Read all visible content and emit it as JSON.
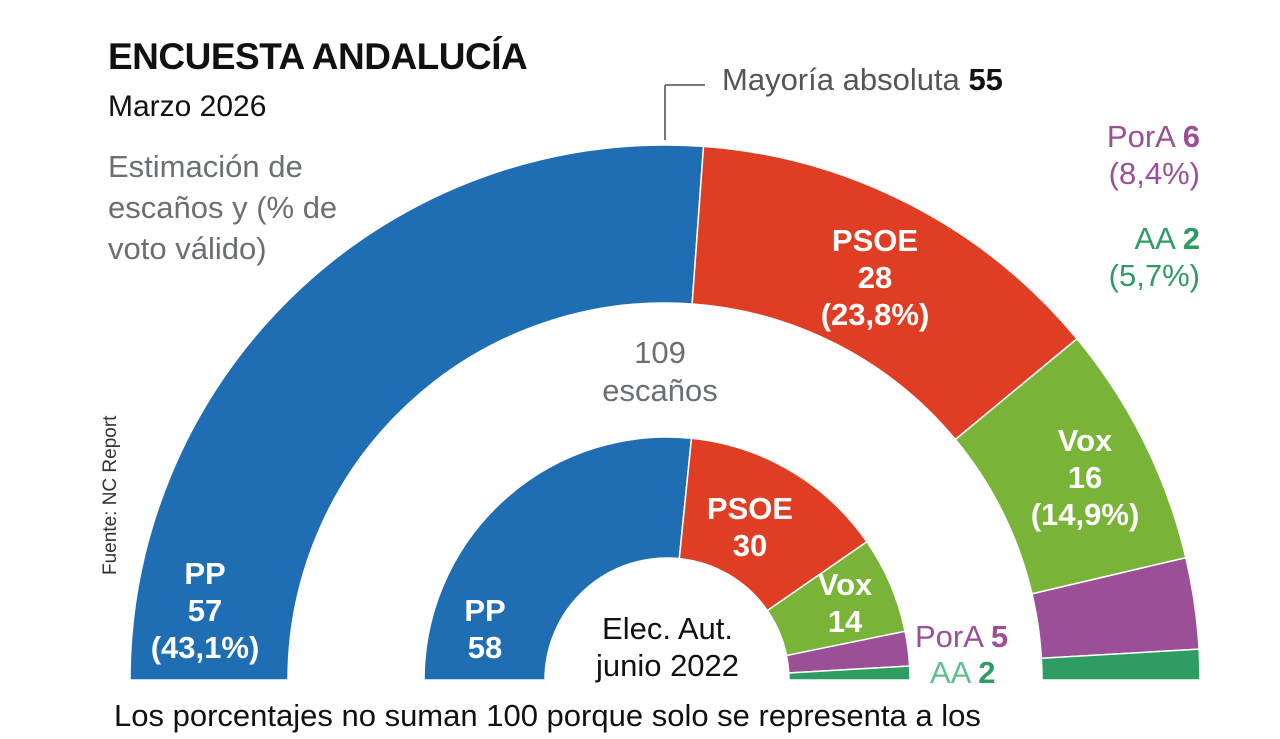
{
  "title": "ENCUESTA ANDALUCÍA",
  "subtitle": "Marzo 2026",
  "description": "Estimación de escaños y (% de voto válido)",
  "source": "Fuente: NC Report",
  "majority": {
    "label": "Mayoría absoluta",
    "value": "55"
  },
  "total": {
    "value": "109",
    "label": "escaños"
  },
  "inner_caption": [
    "Elec. Aut.",
    "junio 2022"
  ],
  "footnote": "Los porcentajes no suman 100 porque solo se representa a los",
  "chart_data": [
    {
      "type": "hemicycle",
      "title": "Marzo 2026",
      "total_seats": 109,
      "majority": 55,
      "series": [
        {
          "name": "PP",
          "seats": 57,
          "vote_pct": "43,1%",
          "color": "#1f6db3"
        },
        {
          "name": "PSOE",
          "seats": 28,
          "vote_pct": "23,8%",
          "color": "#e03e24"
        },
        {
          "name": "Vox",
          "seats": 16,
          "vote_pct": "14,9%",
          "color": "#79b337"
        },
        {
          "name": "PorA",
          "seats": 6,
          "vote_pct": "8,4%",
          "color": "#9b4f97"
        },
        {
          "name": "AA",
          "seats": 2,
          "vote_pct": "5,7%",
          "color": "#2e9c63"
        }
      ]
    },
    {
      "type": "hemicycle",
      "title": "Elec. Aut. junio 2022",
      "total_seats": 109,
      "series": [
        {
          "name": "PP",
          "seats": 58,
          "color": "#1f6db3"
        },
        {
          "name": "PSOE",
          "seats": 30,
          "color": "#e03e24"
        },
        {
          "name": "Vox",
          "seats": 14,
          "color": "#79b337"
        },
        {
          "name": "PorA",
          "seats": 5,
          "color": "#9b4f97"
        },
        {
          "name": "AA",
          "seats": 2,
          "color": "#2e9c63"
        }
      ]
    }
  ]
}
